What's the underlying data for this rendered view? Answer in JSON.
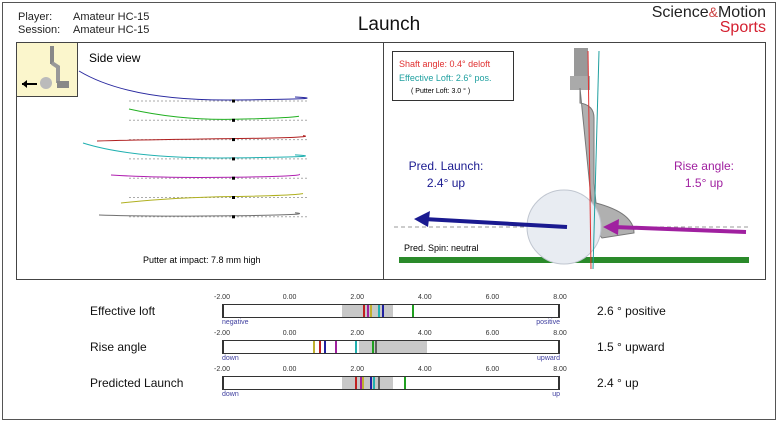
{
  "header": {
    "player_label": "Player:",
    "player_value": "Amateur HC-15",
    "session_label": "Session:",
    "session_value": "Amateur HC-15",
    "title": "Launch",
    "logo": {
      "science": "Science",
      "amp": "&",
      "motion": "Motion",
      "sports": "Sports"
    }
  },
  "side_view": {
    "label": "Side view",
    "impact_text": "Putter at impact:  7.8 mm high",
    "stroke_colors": [
      "#2a2aa0",
      "#22b022",
      "#b02020",
      "#20b0b0",
      "#b020b0",
      "#b0b020",
      "#707070"
    ]
  },
  "front_view": {
    "shaft_angle": "Shaft angle: 0.4° deloft",
    "effective_loft": "Effective Loft: 2.6° pos.",
    "putter_loft": "( Putter Loft: 3.0 ° )",
    "pred_launch_label": "Pred. Launch:",
    "pred_launch_value": "2.4° up",
    "rise_angle_label": "Rise angle:",
    "rise_angle_value": "1.5° up",
    "pred_spin": "Pred. Spin: neutral",
    "colors": {
      "shaft": "#e03030",
      "loft": "#20a0a0",
      "launch": "#1a1a90",
      "rise": "#a020a0",
      "ground": "#2a8a2a"
    }
  },
  "scale": {
    "min": -2,
    "max": 8,
    "ticks": [
      "-2.00",
      "0.00",
      "2.00",
      "4.00",
      "6.00",
      "8.00"
    ]
  },
  "rows": [
    {
      "label": "Effective loft",
      "value": "2.6 ° positive",
      "low": "negative",
      "high": "positive",
      "range": [
        1.5,
        3.0
      ],
      "marks": [
        {
          "v": 2.15,
          "c": "#c02020"
        },
        {
          "v": 2.25,
          "c": "#a020a0"
        },
        {
          "v": 2.35,
          "c": "#c0b030"
        },
        {
          "v": 2.6,
          "c": "#20b0b0"
        },
        {
          "v": 2.7,
          "c": "#2020a0"
        },
        {
          "v": 3.6,
          "c": "#20a020"
        }
      ]
    },
    {
      "label": "Rise angle",
      "value": "1.5 ° upward",
      "low": "down",
      "high": "upward",
      "range": [
        2.0,
        4.0
      ],
      "marks": [
        {
          "v": 0.65,
          "c": "#c0b030"
        },
        {
          "v": 0.85,
          "c": "#c02020"
        },
        {
          "v": 1.0,
          "c": "#2020a0"
        },
        {
          "v": 1.3,
          "c": "#a020a0"
        },
        {
          "v": 1.9,
          "c": "#20b0b0"
        },
        {
          "v": 2.4,
          "c": "#20a020"
        },
        {
          "v": 2.5,
          "c": "#606060"
        }
      ]
    },
    {
      "label": "Predicted Launch",
      "value": "2.4 ° up",
      "low": "down",
      "high": "up",
      "range": [
        1.5,
        3.0
      ],
      "marks": [
        {
          "v": 1.9,
          "c": "#c02020"
        },
        {
          "v": 2.05,
          "c": "#a020a0"
        },
        {
          "v": 2.1,
          "c": "#c0b030"
        },
        {
          "v": 2.35,
          "c": "#2020a0"
        },
        {
          "v": 2.45,
          "c": "#20b0b0"
        },
        {
          "v": 2.6,
          "c": "#606060"
        },
        {
          "v": 3.35,
          "c": "#20a020"
        }
      ]
    }
  ]
}
